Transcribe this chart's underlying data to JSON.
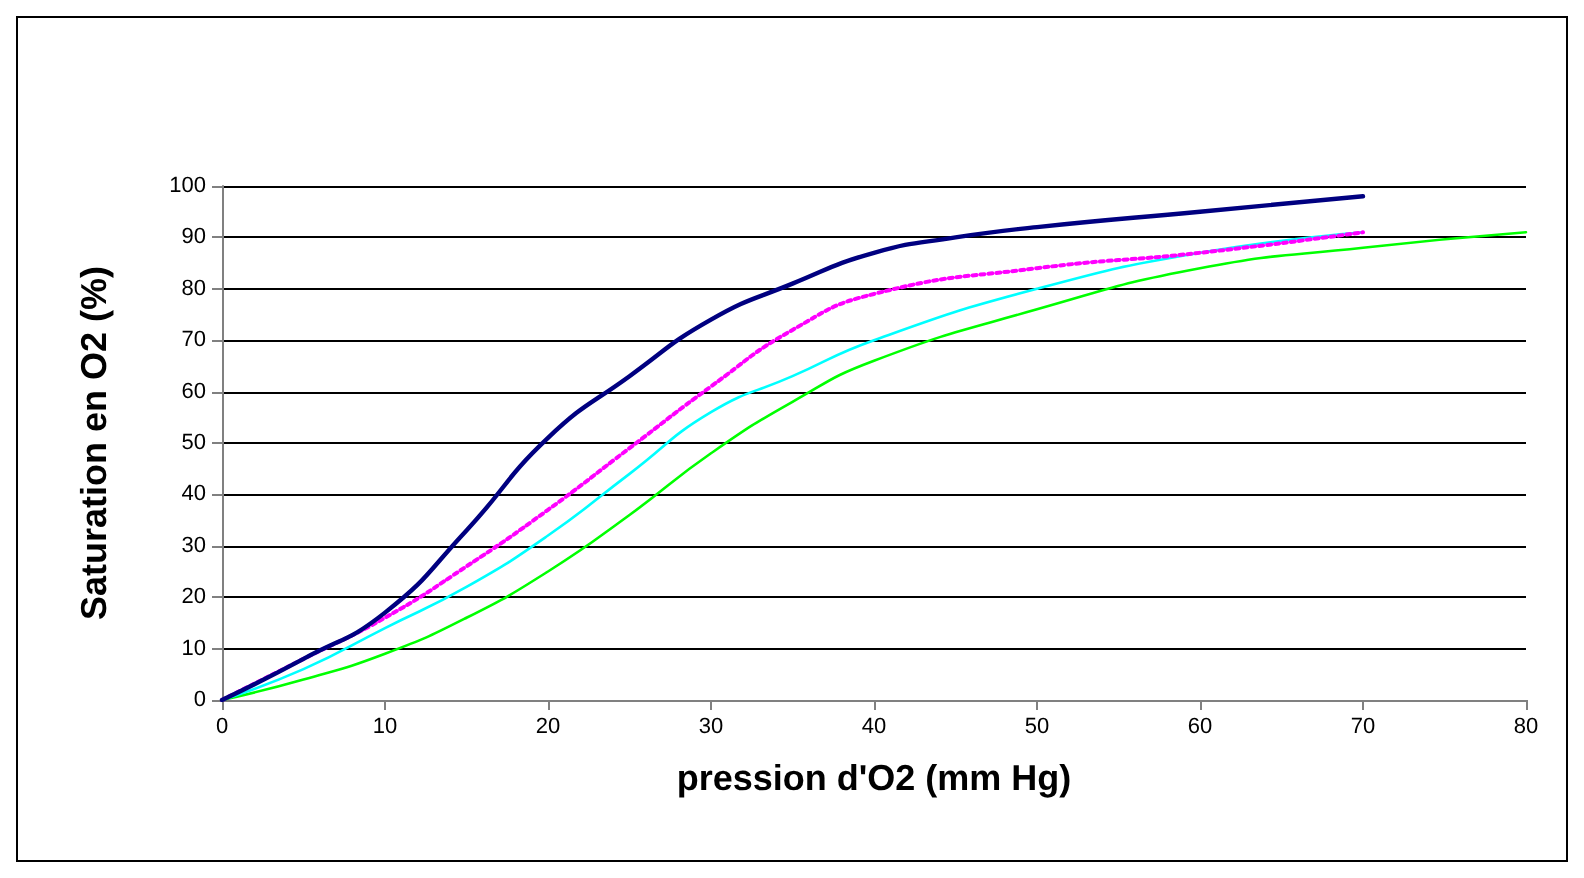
{
  "chart_data": {
    "type": "line",
    "xlabel": "pression d'O2 (mm Hg)",
    "ylabel": "Saturation en O2 (%)",
    "xlim": [
      0,
      80
    ],
    "xticks": [
      0,
      10,
      20,
      30,
      40,
      50,
      60,
      70,
      80
    ],
    "ylim": [
      0,
      100
    ],
    "yticks": [
      0,
      10,
      20,
      30,
      40,
      50,
      60,
      70,
      80,
      90,
      100
    ],
    "grid": "y",
    "marker": "none",
    "series": [
      {
        "color": "#000080",
        "line_style": "solid",
        "x": [
          0,
          5,
          10,
          15,
          20,
          25,
          30,
          35,
          40,
          45,
          50,
          60,
          70
        ],
        "values": [
          0,
          8,
          17,
          33,
          51,
          63,
          74,
          81,
          87,
          90,
          92,
          95,
          98
        ]
      },
      {
        "color": "#ff00ff",
        "line_style": "dotted",
        "x": [
          0,
          5,
          10,
          15,
          20,
          25,
          30,
          35,
          40,
          50,
          60,
          70
        ],
        "values": [
          0,
          8,
          16,
          26,
          37,
          49,
          61,
          72,
          79,
          84,
          87,
          91
        ]
      },
      {
        "color": "#00ffff",
        "line_style": "solid",
        "x": [
          0,
          5,
          10,
          15,
          20,
          25,
          30,
          35,
          40,
          50,
          60,
          70
        ],
        "values": [
          0,
          6,
          14,
          22,
          32,
          44,
          56,
          63,
          70,
          80,
          87,
          91
        ]
      },
      {
        "color": "#00ff00",
        "line_style": "solid",
        "x": [
          0,
          5,
          10,
          15,
          20,
          25,
          30,
          35,
          40,
          50,
          60,
          70,
          80
        ],
        "values": [
          0,
          4,
          9,
          16,
          25,
          36,
          48,
          58,
          66,
          76,
          84,
          88,
          91
        ]
      }
    ]
  }
}
